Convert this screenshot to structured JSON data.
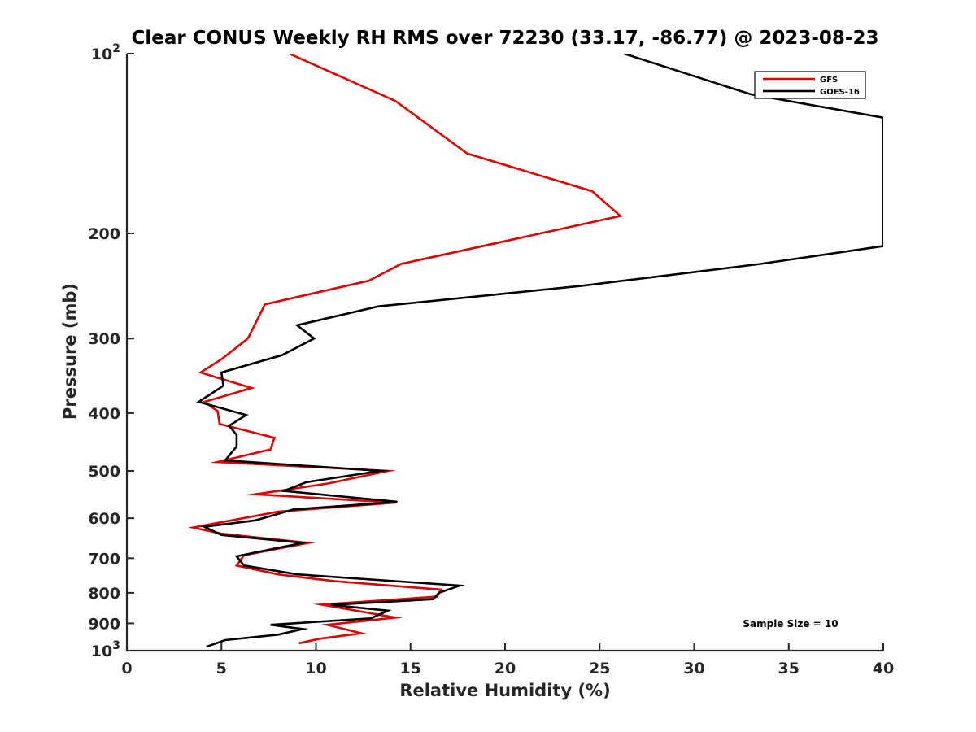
{
  "chart_data": {
    "type": "line",
    "title": "Clear CONUS Weekly RH RMS over 72230 (33.17, -86.77) @ 2023-08-23",
    "xlabel": "Relative Humidity (%)",
    "ylabel": "Pressure (mb)",
    "xlim": [
      0,
      40
    ],
    "ylim": [
      100,
      1000
    ],
    "yscale": "log",
    "y_reversed": true,
    "grid": false,
    "legend_position": "top-right",
    "x_ticks": [
      0,
      5,
      10,
      15,
      20,
      25,
      30,
      35,
      40
    ],
    "x_tick_labels": [
      "0",
      "5",
      "10",
      "15",
      "20",
      "25",
      "30",
      "35",
      "40"
    ],
    "y_ticks": [
      100,
      200,
      300,
      400,
      500,
      600,
      700,
      800,
      900,
      1000
    ],
    "y_tick_labels": [
      {
        "base": "10",
        "exp": "2"
      },
      {
        "base": "200",
        "exp": ""
      },
      {
        "base": "300",
        "exp": ""
      },
      {
        "base": "400",
        "exp": ""
      },
      {
        "base": "500",
        "exp": ""
      },
      {
        "base": "600",
        "exp": ""
      },
      {
        "base": "700",
        "exp": ""
      },
      {
        "base": "800",
        "exp": ""
      },
      {
        "base": "900",
        "exp": ""
      },
      {
        "base": "10",
        "exp": "3"
      }
    ],
    "annotation": "Sample Size = 10",
    "series": [
      {
        "name": "GFS",
        "color": "#e00000",
        "points": [
          [
            8.6,
            100
          ],
          [
            14.2,
            120
          ],
          [
            18.0,
            147
          ],
          [
            24.6,
            170
          ],
          [
            26.1,
            187
          ],
          [
            14.5,
            225
          ],
          [
            12.8,
            240
          ],
          [
            7.3,
            263
          ],
          [
            6.4,
            300
          ],
          [
            5.0,
            325
          ],
          [
            3.9,
            342
          ],
          [
            6.6,
            363
          ],
          [
            4.1,
            383
          ],
          [
            4.8,
            397
          ],
          [
            4.9,
            417
          ],
          [
            7.8,
            440
          ],
          [
            7.6,
            460
          ],
          [
            4.8,
            483
          ],
          [
            13.8,
            500
          ],
          [
            10.6,
            525
          ],
          [
            6.8,
            547
          ],
          [
            14.2,
            565
          ],
          [
            8.0,
            585
          ],
          [
            3.5,
            622
          ],
          [
            5.0,
            637
          ],
          [
            9.6,
            660
          ],
          [
            6.2,
            692
          ],
          [
            5.8,
            720
          ],
          [
            8.0,
            745
          ],
          [
            11.0,
            765
          ],
          [
            16.6,
            790
          ],
          [
            16.4,
            812
          ],
          [
            10.3,
            837
          ],
          [
            14.2,
            880
          ],
          [
            10.6,
            905
          ],
          [
            12.4,
            935
          ],
          [
            10.2,
            955
          ],
          [
            9.1,
            972
          ]
        ]
      },
      {
        "name": "GOES-16",
        "color": "#000000",
        "points": [
          [
            26.3,
            100
          ],
          [
            33.0,
            117
          ],
          [
            40.0,
            128
          ],
          [
            40.0,
            210
          ],
          [
            33.5,
            225
          ],
          [
            24.0,
            245
          ],
          [
            13.3,
            265
          ],
          [
            9.0,
            285
          ],
          [
            9.9,
            300
          ],
          [
            8.2,
            320
          ],
          [
            5.0,
            342
          ],
          [
            5.1,
            360
          ],
          [
            3.8,
            383
          ],
          [
            6.3,
            403
          ],
          [
            5.4,
            420
          ],
          [
            5.8,
            435
          ],
          [
            5.8,
            455
          ],
          [
            5.2,
            480
          ],
          [
            13.4,
            500
          ],
          [
            9.5,
            522
          ],
          [
            8.3,
            540
          ],
          [
            14.3,
            563
          ],
          [
            8.8,
            580
          ],
          [
            6.8,
            605
          ],
          [
            4.1,
            620
          ],
          [
            5.0,
            640
          ],
          [
            9.3,
            660
          ],
          [
            5.8,
            695
          ],
          [
            6.2,
            720
          ],
          [
            9.0,
            745
          ],
          [
            17.6,
            778
          ],
          [
            16.5,
            800
          ],
          [
            16.2,
            820
          ],
          [
            10.8,
            838
          ],
          [
            13.8,
            857
          ],
          [
            12.9,
            883
          ],
          [
            7.6,
            905
          ],
          [
            9.3,
            920
          ],
          [
            8.0,
            940
          ],
          [
            5.2,
            960
          ],
          [
            4.2,
            985
          ]
        ]
      }
    ]
  }
}
